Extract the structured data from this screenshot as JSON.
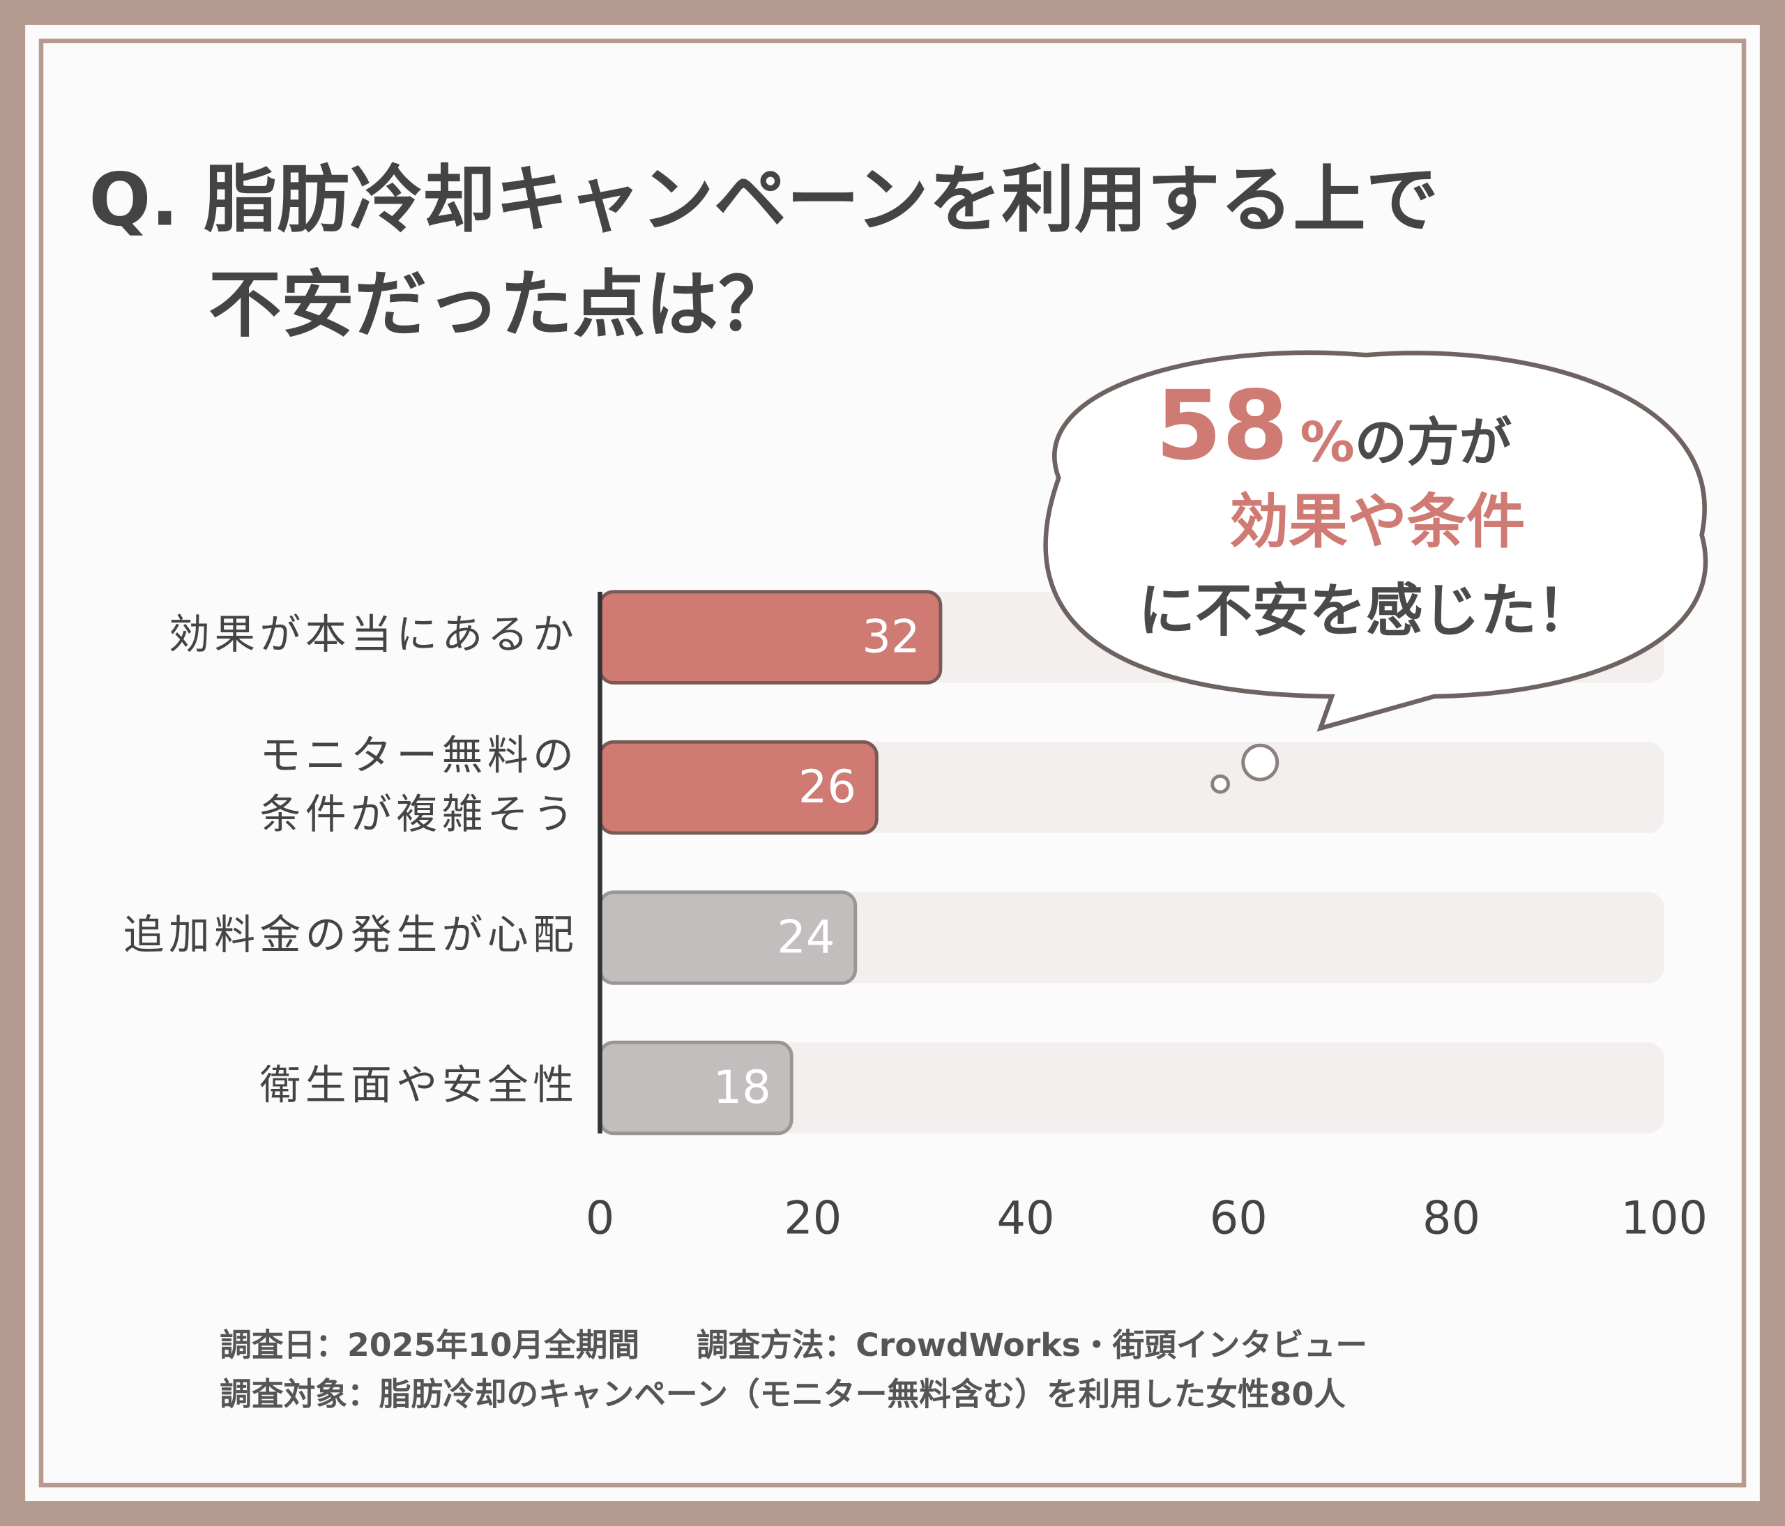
{
  "chart_data": {
    "type": "bar",
    "orientation": "horizontal",
    "title_lines": [
      "Q. 脂肪冷却キャンペーンを利用する上で",
      "不安だった点は？"
    ],
    "categories": [
      "効果が本当にあるか",
      [
        "モニター無料の",
        "条件が複雑そう"
      ],
      "追加料金の発生が心配",
      "衛生面や安全性"
    ],
    "values": [
      32,
      26,
      24,
      18
    ],
    "colors": [
      "#d07a74",
      "#d07a74",
      "#c2bebd",
      "#c2bebd"
    ],
    "track_color": "#f2efee",
    "xlim": [
      0,
      100
    ],
    "xticks": [
      0,
      20,
      40,
      60,
      80,
      100
    ],
    "callout": {
      "number": "58",
      "unit": "%",
      "lines": [
        "の方が",
        "効果や条件",
        "に不安を感じた！"
      ]
    },
    "footnotes": [
      [
        "調査日：2025年10月全期間",
        "調査方法：CrowdWorks・街頭インタビュー"
      ],
      [
        "調査対象：脂肪冷却のキャンペーン（モニター無料含む）を利用した女性80人"
      ]
    ]
  }
}
